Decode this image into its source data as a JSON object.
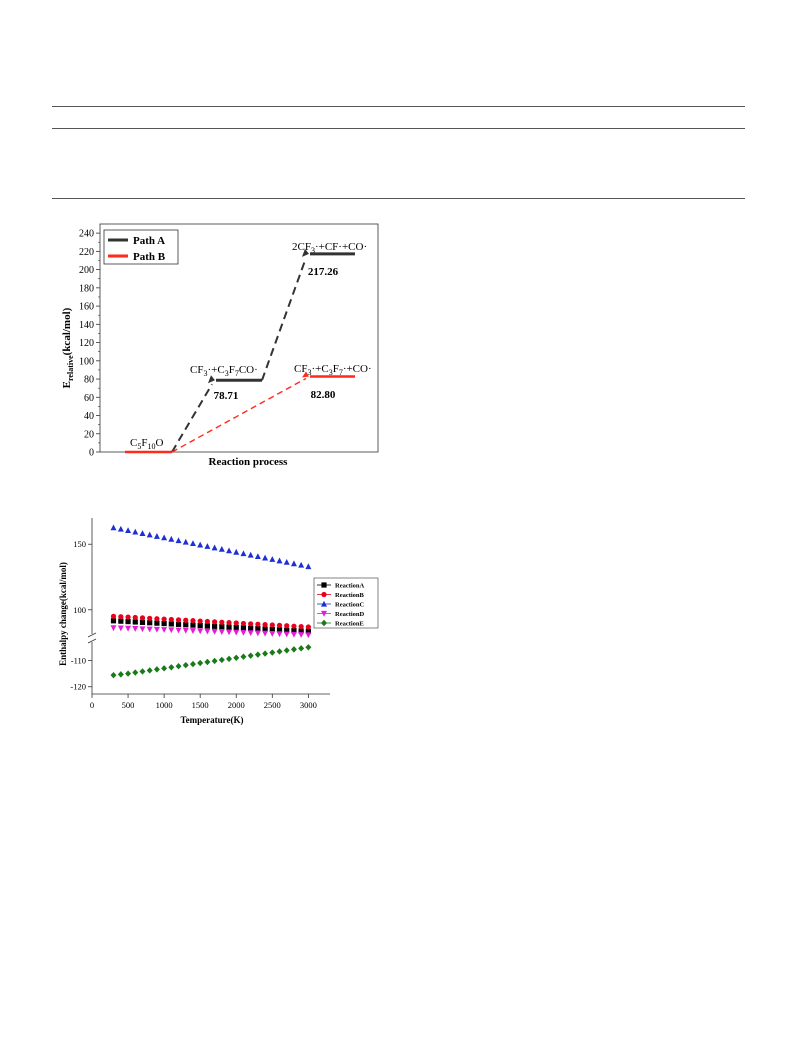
{
  "chart_data": [
    {
      "type": "line",
      "ylabel_main": "E",
      "ylabel_sub": "relative",
      "ylabel_unit": "(kcal/mol)",
      "xlabel": "Reaction process",
      "ylim": [
        0,
        250
      ],
      "yticks": [
        0,
        20,
        40,
        60,
        80,
        100,
        120,
        140,
        160,
        180,
        200,
        220,
        240
      ],
      "legend_position": "top-left",
      "colors": {
        "path_a": "#333333",
        "path_b": "#ff2a1a"
      },
      "legend": [
        {
          "name": "Path A",
          "color": "#333333"
        },
        {
          "name": "Path B",
          "color": "#ff2a1a"
        }
      ],
      "states": {
        "reactant": {
          "label": "C5F10O",
          "value": 0
        },
        "a1": {
          "label": "CF3·+C3F7CO·",
          "value": 78.71,
          "value_label": "78.71"
        },
        "a2": {
          "label": "2CF3·+CF·+CO·",
          "value": 217.26,
          "value_label": "217.26"
        },
        "b1": {
          "label": "CF3·+C3F7·+CO·",
          "value": 82.8,
          "value_label": "82.80"
        }
      }
    },
    {
      "type": "scatter",
      "xlabel": "Temperature(K)",
      "ylabel": "Enthalpy change(kcal/mol)",
      "xlim": [
        0,
        3300
      ],
      "xticks": [
        0,
        500,
        1000,
        1500,
        2000,
        2500,
        3000
      ],
      "yticks_upper": [
        100,
        150
      ],
      "yticks_lower": [
        -120,
        -110
      ],
      "axis_break": true,
      "legend_position": "right",
      "x": [
        298,
        400,
        500,
        600,
        700,
        800,
        900,
        1000,
        1100,
        1200,
        1300,
        1400,
        1500,
        1600,
        1700,
        1800,
        1900,
        2000,
        2100,
        2200,
        2300,
        2400,
        2500,
        2600,
        2700,
        2800,
        2900,
        3000
      ],
      "series": [
        {
          "name": "ReactionA",
          "marker": "square",
          "color": "#000000",
          "values": [
            91.6,
            91.3,
            91.0,
            90.7,
            90.4,
            90.1,
            89.8,
            89.5,
            89.2,
            88.9,
            88.6,
            88.3,
            88.0,
            87.7,
            87.4,
            87.1,
            86.8,
            86.5,
            86.2,
            85.9,
            85.6,
            85.3,
            85.0,
            84.7,
            84.4,
            84.1,
            83.8,
            83.6
          ]
        },
        {
          "name": "ReactionB",
          "marker": "circle",
          "color": "#e8001c",
          "values": [
            95.0,
            94.7,
            94.4,
            94.1,
            93.8,
            93.5,
            93.2,
            92.9,
            92.6,
            92.3,
            92.0,
            91.7,
            91.4,
            91.1,
            90.8,
            90.5,
            90.2,
            89.9,
            89.6,
            89.3,
            89.0,
            88.7,
            88.4,
            88.1,
            87.8,
            87.5,
            87.2,
            86.9
          ]
        },
        {
          "name": "ReactionC",
          "marker": "triangle-up",
          "color": "#1f2fd6",
          "values": [
            162.6,
            161.6,
            160.5,
            159.4,
            158.3,
            157.2,
            156.1,
            155.0,
            153.9,
            152.8,
            151.7,
            150.6,
            149.5,
            148.4,
            147.3,
            146.2,
            145.1,
            144.0,
            142.9,
            141.8,
            140.7,
            139.6,
            138.5,
            137.4,
            136.3,
            135.2,
            134.1,
            133.0
          ]
        },
        {
          "name": "ReactionD",
          "marker": "triangle-down",
          "color": "#e81ad9",
          "values": [
            86.2,
            86.0,
            85.8,
            85.6,
            85.4,
            85.2,
            85.0,
            84.8,
            84.6,
            84.4,
            84.2,
            84.0,
            83.8,
            83.6,
            83.4,
            83.2,
            83.0,
            82.8,
            82.6,
            82.4,
            82.2,
            82.0,
            81.8,
            81.6,
            81.4,
            81.2,
            81.0,
            80.8
          ]
        },
        {
          "name": "ReactionE",
          "marker": "diamond",
          "color": "#1a7a1a",
          "values": [
            -115.6,
            -115.3,
            -115.0,
            -114.6,
            -114.2,
            -113.8,
            -113.4,
            -113.0,
            -112.6,
            -112.2,
            -111.8,
            -111.4,
            -111.0,
            -110.6,
            -110.2,
            -109.8,
            -109.4,
            -109.0,
            -108.6,
            -108.2,
            -107.8,
            -107.4,
            -107.0,
            -106.6,
            -106.2,
            -105.8,
            -105.4,
            -105.0
          ]
        }
      ]
    }
  ]
}
